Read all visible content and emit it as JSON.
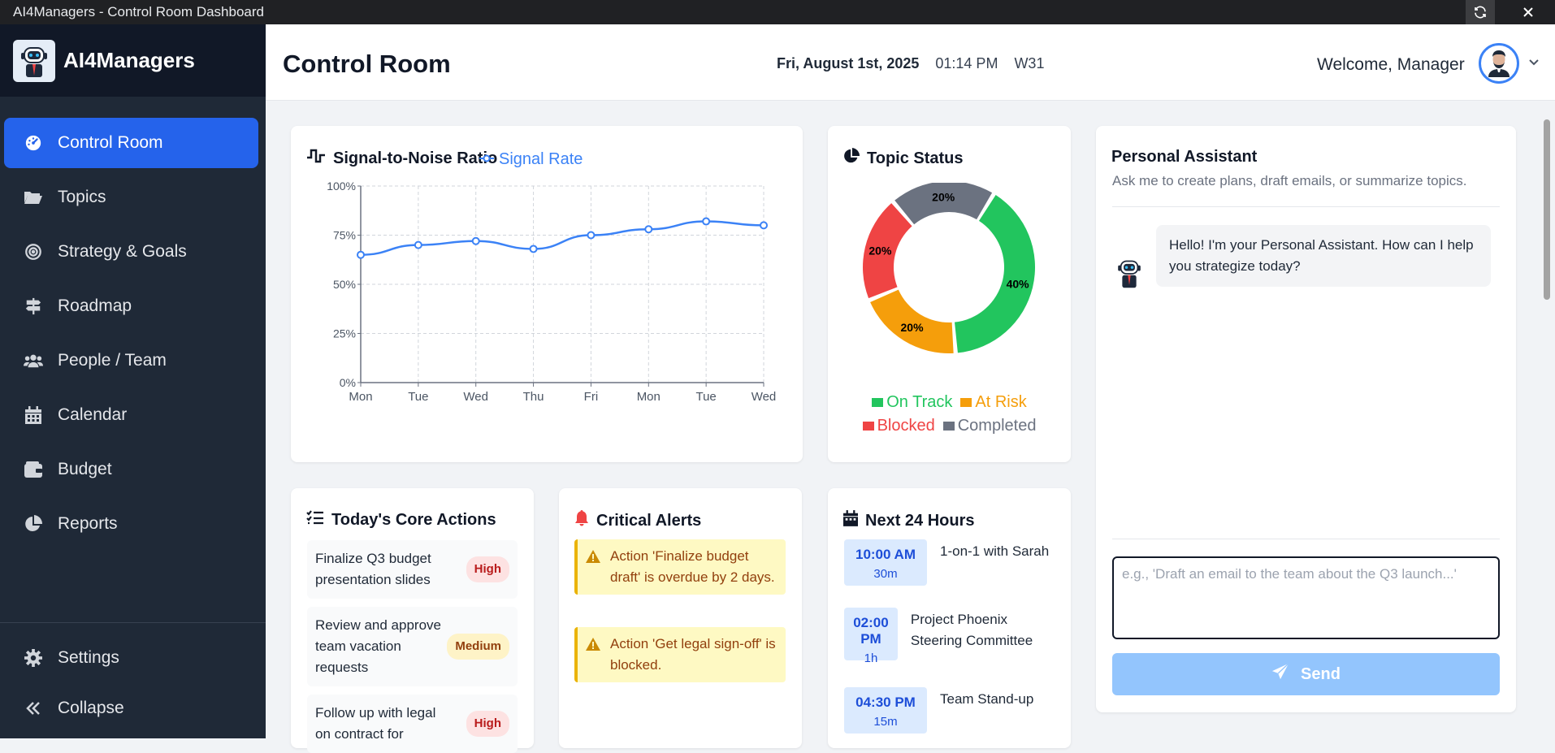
{
  "window": {
    "title": "AI4Managers - Control Room Dashboard"
  },
  "brand": {
    "name": "AI4Managers"
  },
  "sidebar": {
    "items": [
      {
        "label": "Control Room",
        "icon": "gauge-icon",
        "active": true
      },
      {
        "label": "Topics",
        "icon": "folder-open-icon"
      },
      {
        "label": "Strategy & Goals",
        "icon": "target-icon"
      },
      {
        "label": "Roadmap",
        "icon": "signpost-icon"
      },
      {
        "label": "People / Team",
        "icon": "users-icon"
      },
      {
        "label": "Calendar",
        "icon": "calendar-icon"
      },
      {
        "label": "Budget",
        "icon": "wallet-icon"
      },
      {
        "label": "Reports",
        "icon": "pie-chart-icon"
      }
    ],
    "bottom": [
      {
        "label": "Settings",
        "icon": "gear-icon"
      },
      {
        "label": "Collapse",
        "icon": "double-chevron-left-icon"
      }
    ]
  },
  "header": {
    "title": "Control Room",
    "date": "Fri, August 1st, 2025",
    "time": "01:14 PM",
    "week": "W31",
    "welcome": "Welcome, Manager"
  },
  "snr": {
    "title": "Signal-to-Noise Ratio",
    "chart_data": {
      "type": "line",
      "categories": [
        "Mon",
        "Tue",
        "Wed",
        "Thu",
        "Fri",
        "Mon",
        "Tue",
        "Wed"
      ],
      "series": [
        {
          "name": "Signal Rate",
          "values": [
            65,
            70,
            72,
            68,
            75,
            78,
            82,
            80
          ],
          "color": "#3b82f6"
        }
      ],
      "ylim": [
        0,
        100
      ],
      "yticks": [
        "0%",
        "25%",
        "50%",
        "75%",
        "100%"
      ],
      "grid": true,
      "legend": "top"
    }
  },
  "topic_status": {
    "title": "Topic Status",
    "chart_data": {
      "type": "pie",
      "categories": [
        "On Track",
        "At Risk",
        "Blocked",
        "Completed"
      ],
      "values": [
        40,
        20,
        20,
        20
      ],
      "labels": [
        "40%",
        "20%",
        "20%",
        "20%"
      ],
      "colors": [
        "#22c55e",
        "#f59e0b",
        "#ef4444",
        "#6b7280"
      ],
      "legend": "bottom"
    }
  },
  "core_actions": {
    "title": "Today's Core Actions",
    "items": [
      {
        "text": "Finalize Q3 budget presentation slides",
        "priority": "High"
      },
      {
        "text": "Review and approve team vacation requests",
        "priority": "Medium"
      },
      {
        "text": "Follow up with legal on contract for",
        "priority": "High"
      }
    ]
  },
  "alerts": {
    "title": "Critical Alerts",
    "items": [
      {
        "text": "Action 'Finalize budget draft' is overdue by 2 days."
      },
      {
        "text": "Action 'Get legal sign-off' is blocked."
      }
    ]
  },
  "next24": {
    "title": "Next 24 Hours",
    "events": [
      {
        "time": "10:00 AM",
        "duration": "30m",
        "title": "1-on-1 with Sarah"
      },
      {
        "time": "02:00 PM",
        "duration": "1h",
        "title": "Project Phoenix Steering Committee"
      },
      {
        "time": "04:30 PM",
        "duration": "15m",
        "title": "Team Stand-up"
      }
    ]
  },
  "assistant": {
    "title": "Personal Assistant",
    "subtitle": "Ask me to create plans, draft emails, or summarize topics.",
    "greeting": "Hello! I'm your Personal Assistant. How can I help you strategize today?",
    "placeholder": "e.g., 'Draft an email to the team about the Q3 launch...'",
    "send_label": "Send"
  }
}
